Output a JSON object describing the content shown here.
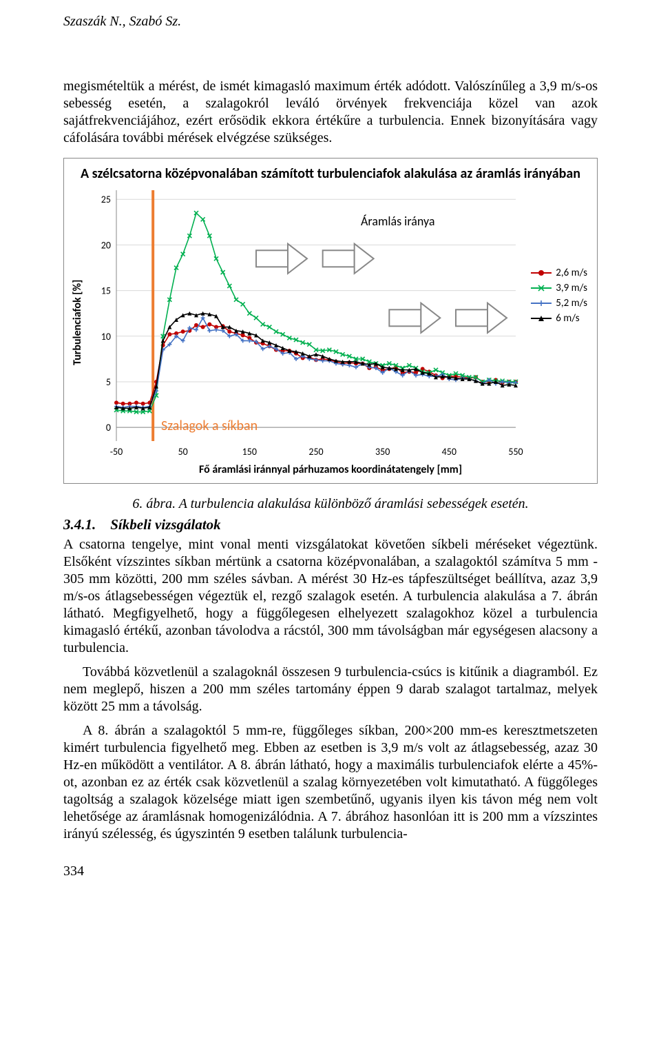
{
  "header": {
    "authors": "Szaszák N., Szabó Sz."
  },
  "intro_paragraph": "megismételtük a mérést, de ismét kimagasló maximum érték adódott. Valószínűleg a 3,9 m/s-os sebesség esetén, a szalagokról leváló örvények frekvenciája közel van azok sajátfrekvenciájához, ezért erősödik ekkora értékűre a turbulencia. Ennek bizonyítására vagy cáfolására további mérések elvégzése szükséges.",
  "figure": {
    "title": "A szélcsatorna középvonalában számított turbulenciafok alakulása az áramlás irányában",
    "yaxis": "Turbulenciafok [%]",
    "xaxis": "Fő áramlási iránnyal párhuzamos koordinátatengely [mm]",
    "xlim": [
      -50,
      550
    ],
    "ylim": [
      -1.5,
      26
    ],
    "xticks": [
      -50,
      50,
      150,
      250,
      350,
      450,
      550
    ],
    "yticks": [
      0,
      5,
      10,
      15,
      20,
      25
    ],
    "grid_color": "#d9d9d9",
    "vbar_x": 5,
    "vbar_color": "#ed7d31",
    "arrow_color": "#888888",
    "annot_flow": "Áramlás iránya",
    "annot_szalag": "Szalagok a síkban",
    "legend": [
      {
        "label": "2,6 m/s",
        "color": "#c00000",
        "marker": "circle"
      },
      {
        "label": "3,9 m/s",
        "color": "#00b050",
        "marker": "x"
      },
      {
        "label": "5,2 m/s",
        "color": "#4472c4",
        "marker": "plus"
      },
      {
        "label": "6 m/s",
        "color": "#000000",
        "marker": "triangle"
      }
    ],
    "x_values": [
      -50,
      -40,
      -30,
      -20,
      -10,
      0,
      10,
      20,
      30,
      40,
      50,
      60,
      70,
      80,
      90,
      100,
      110,
      120,
      130,
      140,
      150,
      160,
      170,
      180,
      190,
      200,
      210,
      220,
      230,
      240,
      250,
      260,
      270,
      280,
      290,
      300,
      310,
      320,
      330,
      340,
      350,
      360,
      370,
      380,
      390,
      400,
      410,
      420,
      430,
      440,
      450,
      460,
      470,
      480,
      490,
      500,
      510,
      520,
      530,
      540,
      550
    ],
    "series": {
      "s26": [
        2.7,
        2.6,
        2.6,
        2.7,
        2.6,
        2.7,
        5.0,
        9.0,
        10.2,
        10.3,
        10.5,
        10.6,
        11.2,
        11.0,
        11.3,
        11.0,
        11.1,
        10.5,
        10.3,
        10.1,
        9.8,
        9.3,
        9.2,
        8.9,
        8.5,
        8.4,
        8.4,
        8.1,
        7.6,
        7.7,
        7.4,
        7.5,
        7.4,
        7.2,
        7.0,
        7.1,
        7.0,
        7.0,
        6.5,
        6.6,
        6.3,
        6.4,
        6.6,
        6.0,
        6.1,
        6.0,
        6.4,
        6.1,
        5.7,
        5.4,
        5.6,
        5.6,
        5.5,
        5.4,
        5.5,
        5.0,
        5.0,
        5.2,
        4.9,
        5.0,
        5.0
      ],
      "s39": [
        1.9,
        1.8,
        1.8,
        1.7,
        1.7,
        1.8,
        3.5,
        10.0,
        14.0,
        17.5,
        19.0,
        21.0,
        23.5,
        22.8,
        21.0,
        18.5,
        17.0,
        15.5,
        14.0,
        13.5,
        12.5,
        12.0,
        11.3,
        11.0,
        10.5,
        10.2,
        9.8,
        9.6,
        9.3,
        9.1,
        8.5,
        8.4,
        8.5,
        8.3,
        8.0,
        7.8,
        7.5,
        7.5,
        7.2,
        7.0,
        6.8,
        7.0,
        6.8,
        6.5,
        6.8,
        6.5,
        6.1,
        6.0,
        6.3,
        6.0,
        5.7,
        5.9,
        5.7,
        5.5,
        5.5,
        5.0,
        5.2,
        5.1,
        5.1,
        5.0,
        5.0
      ],
      "s52": [
        2.3,
        2.2,
        2.3,
        2.3,
        2.2,
        2.3,
        4.0,
        8.5,
        9.1,
        10.0,
        9.5,
        10.9,
        10.7,
        12.0,
        10.6,
        10.7,
        10.6,
        10.0,
        10.2,
        9.5,
        9.5,
        9.4,
        8.6,
        8.9,
        8.6,
        8.1,
        8.2,
        7.5,
        7.8,
        7.5,
        7.4,
        7.3,
        7.3,
        7.0,
        6.9,
        6.8,
        6.6,
        7.0,
        6.6,
        6.5,
        6.0,
        6.5,
        6.1,
        5.7,
        6.2,
        5.7,
        5.8,
        5.6,
        5.6,
        5.8,
        5.3,
        5.2,
        5.4,
        5.3,
        5.1,
        4.8,
        5.2,
        4.8,
        5.0,
        4.9,
        4.9
      ],
      "s60": [
        2.2,
        2.1,
        2.1,
        2.2,
        2.1,
        2.2,
        4.5,
        9.5,
        11.0,
        11.8,
        12.3,
        12.5,
        12.3,
        12.5,
        12.4,
        12.2,
        11.0,
        11.0,
        10.6,
        10.5,
        10.3,
        10.1,
        9.5,
        9.3,
        9.0,
        8.7,
        8.4,
        8.3,
        8.1,
        7.8,
        8.0,
        7.8,
        7.5,
        7.3,
        7.2,
        7.2,
        7.2,
        7.0,
        6.9,
        7.0,
        6.6,
        6.5,
        6.4,
        6.3,
        6.3,
        6.4,
        6.0,
        5.9,
        5.5,
        5.6,
        5.5,
        5.4,
        5.3,
        5.3,
        5.1,
        4.8,
        4.8,
        5.0,
        4.6,
        4.7,
        4.6
      ]
    }
  },
  "caption": "6. ábra. A turbulencia alakulása különböző áramlási sebességek esetén.",
  "section": {
    "number": "3.4.1.",
    "title": "Síkbeli vizsgálatok"
  },
  "body_p1": "A csatorna tengelye, mint vonal menti vizsgálatokat követően síkbeli méréseket végeztünk. Elsőként vízszintes síkban mértünk a csatorna középvonalában, a szalagoktól számítva 5 mm - 305 mm közötti, 200 mm széles sávban. A mérést 30 Hz-es tápfeszültséget beállítva, azaz 3,9 m/s-os átlagsebességen végeztük el, rezgő szalagok esetén. A turbulencia alakulása a 7. ábrán látható. Megfigyelhető, hogy a függőlegesen elhelyezett szalagokhoz közel a turbulencia kimagasló értékű, azonban távolodva a rácstól, 300 mm távolságban már egységesen alacsony a turbulencia.",
  "body_p2": "Továbbá közvetlenül a szalagoknál összesen 9 turbulencia-csúcs is kitűnik a diagramból. Ez nem meglepő, hiszen a 200 mm széles tartomány éppen 9 darab szalagot tartalmaz, melyek között 25 mm a távolság.",
  "body_p3": "A 8. ábrán a szalagoktól 5 mm-re, függőleges síkban, 200×200 mm-es keresztmetszeten kimért turbulencia figyelhető meg. Ebben az esetben is 3,9 m/s volt az átlagsebesség, azaz 30 Hz-en működött a ventilátor. A 8. ábrán látható, hogy a maximális turbulenciafok elérte a 45%-ot, azonban ez az érték csak közvetlenül a szalag környezetében volt kimutatható. A függőleges tagoltság a szalagok közelsége miatt igen szembetűnő, ugyanis ilyen kis távon még nem volt lehetősége az áramlásnak homogenizálódnia. A 7. ábrához hasonlóan itt is 200 mm a vízszintes irányú szélesség, és úgyszintén 9 esetben találunk turbulencia-",
  "footer": {
    "page": "334"
  }
}
